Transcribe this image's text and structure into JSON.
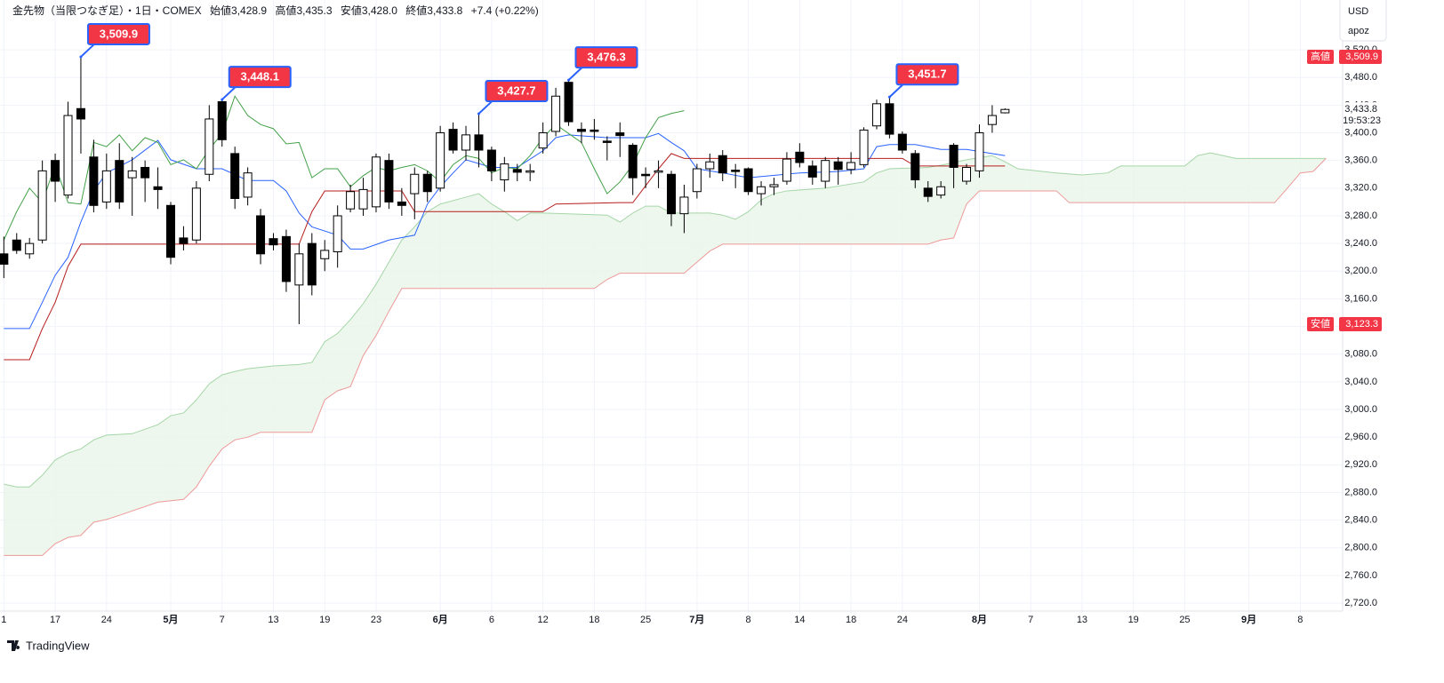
{
  "chart_data": {
    "type": "candlestick",
    "title": "金先物（当限つなぎ足）・1日・COMEX",
    "ohlc_header": [
      {
        "label": "始値",
        "value": "3,428.9"
      },
      {
        "label": "高値",
        "value": "3,435.3"
      },
      {
        "label": "安値",
        "value": "3,428.0"
      },
      {
        "label": "終値",
        "value": "3,433.8"
      }
    ],
    "change": "+7.4 (+0.22%)",
    "currency": "USD",
    "user": "apoz",
    "brand": "TradingView",
    "up_color": "#ffffff",
    "down_color": "#000000",
    "grid": true,
    "xlim": [
      -0.3,
      104.3
    ],
    "ylim": [
      2706,
      3592
    ],
    "xticks": [
      {
        "value": 0,
        "label": "1"
      },
      {
        "value": 4,
        "label": "17"
      },
      {
        "value": 8,
        "label": "24"
      },
      {
        "value": 13,
        "label": "5月"
      },
      {
        "value": 17,
        "label": "7"
      },
      {
        "value": 21,
        "label": "13"
      },
      {
        "value": 25,
        "label": "19"
      },
      {
        "value": 29,
        "label": "23"
      },
      {
        "value": 34,
        "label": "6月"
      },
      {
        "value": 38,
        "label": "6"
      },
      {
        "value": 42,
        "label": "12"
      },
      {
        "value": 46,
        "label": "18"
      },
      {
        "value": 50,
        "label": "25"
      },
      {
        "value": 54,
        "label": "7月"
      },
      {
        "value": 58,
        "label": "8"
      },
      {
        "value": 62,
        "label": "14"
      },
      {
        "value": 66,
        "label": "18"
      },
      {
        "value": 70,
        "label": "24"
      },
      {
        "value": 76,
        "label": "8月"
      },
      {
        "value": 80,
        "label": "7"
      },
      {
        "value": 84,
        "label": "13"
      },
      {
        "value": 88,
        "label": "19"
      },
      {
        "value": 92,
        "label": "25"
      },
      {
        "value": 97,
        "label": "9月"
      },
      {
        "value": 101,
        "label": "8"
      }
    ],
    "yticks": [
      {
        "value": 2720,
        "label": "2,720.0"
      },
      {
        "value": 2760,
        "label": "2,760.0"
      },
      {
        "value": 2800,
        "label": "2,800.0"
      },
      {
        "value": 2840,
        "label": "2,840.0"
      },
      {
        "value": 2880,
        "label": "2,880.0"
      },
      {
        "value": 2920,
        "label": "2,920.0"
      },
      {
        "value": 2960,
        "label": "2,960.0"
      },
      {
        "value": 3000,
        "label": "3,000.0"
      },
      {
        "value": 3040,
        "label": "3,040.0"
      },
      {
        "value": 3080,
        "label": "3,080.0"
      },
      {
        "value": 3120,
        "label": "3,120.0"
      },
      {
        "value": 3160,
        "label": "3,160.0"
      },
      {
        "value": 3200,
        "label": "3,200.0"
      },
      {
        "value": 3240,
        "label": "3,240.0"
      },
      {
        "value": 3280,
        "label": "3,280.0"
      },
      {
        "value": 3320,
        "label": "3,320.0"
      },
      {
        "value": 3360,
        "label": "3,360.0"
      },
      {
        "value": 3400,
        "label": "3,400.0"
      },
      {
        "value": 3440,
        "label": "3,440.0"
      },
      {
        "value": 3480,
        "label": "3,480.0"
      },
      {
        "value": 3520,
        "label": "3,520.0"
      }
    ],
    "x": [
      0,
      1,
      2,
      3,
      4,
      5,
      6,
      7,
      8,
      9,
      10,
      11,
      12,
      13,
      14,
      15,
      16,
      17,
      18,
      19,
      20,
      21,
      22,
      23,
      24,
      25,
      26,
      27,
      28,
      29,
      30,
      31,
      32,
      33,
      34,
      35,
      36,
      37,
      38,
      39,
      40,
      41,
      42,
      43,
      44,
      45,
      46,
      47,
      48,
      49,
      50,
      51,
      52,
      53,
      54,
      55,
      56,
      57,
      58,
      59,
      60,
      61,
      62,
      63,
      64,
      65,
      66,
      67,
      68,
      69,
      70,
      71,
      72,
      73,
      74,
      75,
      76,
      77,
      78
    ],
    "open": [
      3225,
      3245,
      3225,
      3245,
      3360,
      3310,
      3435,
      3365,
      3300,
      3360,
      3335,
      3350,
      3322,
      3295,
      3248,
      3245,
      3340,
      3445,
      3370,
      3307,
      3280,
      3247,
      3250,
      3180,
      3240,
      3218,
      3228,
      3290,
      3290,
      3293,
      3360,
      3300,
      3312,
      3340,
      3320,
      3405,
      3375,
      3397,
      3375,
      3332,
      3347,
      3343,
      3378,
      3402,
      3473,
      3405,
      3404,
      3388,
      3400,
      3382,
      3340,
      3343,
      3340,
      3283,
      3315,
      3348,
      3367,
      3346,
      3348,
      3312,
      3322,
      3330,
      3372,
      3352,
      3330,
      3358,
      3347,
      3354,
      3410,
      3442,
      3398,
      3370,
      3320,
      3310,
      3382,
      3330,
      3345,
      3412,
      3428.9
    ],
    "high": [
      3250,
      3255,
      3248,
      3360,
      3370,
      3445,
      3509.9,
      3390,
      3370,
      3385,
      3365,
      3360,
      3350,
      3300,
      3265,
      3330,
      3440,
      3448.1,
      3380,
      3350,
      3290,
      3255,
      3260,
      3240,
      3255,
      3245,
      3295,
      3325,
      3335,
      3370,
      3370,
      3320,
      3350,
      3345,
      3410,
      3415,
      3410,
      3427.7,
      3380,
      3365,
      3355,
      3355,
      3415,
      3465,
      3476.3,
      3415,
      3420,
      3395,
      3415,
      3385,
      3350,
      3360,
      3345,
      3325,
      3355,
      3370,
      3375,
      3355,
      3350,
      3330,
      3335,
      3372,
      3385,
      3360,
      3365,
      3365,
      3372,
      3408,
      3448,
      3451.7,
      3402,
      3375,
      3330,
      3330,
      3385,
      3355,
      3412,
      3440,
      3435.3
    ],
    "low": [
      3190,
      3225,
      3218,
      3240,
      3300,
      3305,
      3370,
      3285,
      3290,
      3290,
      3280,
      3300,
      3290,
      3210,
      3230,
      3240,
      3330,
      3380,
      3290,
      3295,
      3210,
      3230,
      3170,
      3123.3,
      3165,
      3200,
      3205,
      3285,
      3280,
      3285,
      3290,
      3280,
      3275,
      3300,
      3315,
      3370,
      3360,
      3350,
      3330,
      3315,
      3330,
      3330,
      3370,
      3395,
      3410,
      3385,
      3390,
      3360,
      3365,
      3310,
      3320,
      3320,
      3265,
      3255,
      3305,
      3335,
      3330,
      3320,
      3310,
      3295,
      3310,
      3325,
      3350,
      3325,
      3320,
      3325,
      3340,
      3350,
      3405,
      3392,
      3370,
      3320,
      3300,
      3305,
      3320,
      3325,
      3335,
      3400,
      3428.0
    ],
    "close": [
      3210,
      3230,
      3240,
      3345,
      3330,
      3425,
      3420,
      3295,
      3345,
      3300,
      3345,
      3335,
      3318,
      3220,
      3240,
      3320,
      3420,
      3390,
      3305,
      3342,
      3225,
      3238,
      3185,
      3225,
      3180,
      3230,
      3280,
      3315,
      3318,
      3365,
      3300,
      3295,
      3340,
      3315,
      3400,
      3375,
      3397,
      3375,
      3345,
      3355,
      3343,
      3345,
      3400,
      3453,
      3416,
      3402,
      3402,
      3386,
      3396,
      3335,
      3338,
      3345,
      3283,
      3307,
      3348,
      3358,
      3342,
      3344,
      3315,
      3322,
      3325,
      3362,
      3357,
      3336,
      3360,
      3347,
      3357,
      3404,
      3442,
      3398,
      3375,
      3332,
      3308,
      3322,
      3350,
      3350,
      3400,
      3425,
      3433.8
    ],
    "lines": [
      {
        "color": "#2962ff",
        "x": [
          0,
          2,
          3,
          4,
          5,
          6,
          7,
          8,
          10,
          12,
          13,
          15,
          17,
          19,
          21,
          22,
          23,
          24,
          26,
          27,
          28,
          30,
          32,
          33,
          34,
          35,
          36,
          38,
          40,
          42,
          43,
          44,
          47,
          50,
          51,
          52,
          53,
          54,
          56,
          58,
          62,
          65,
          67,
          68,
          69,
          71,
          73,
          75,
          78
        ],
        "values": [
          3117,
          3117,
          3155,
          3194,
          3220,
          3271,
          3316,
          3342,
          3361,
          3389,
          3361,
          3348,
          3348,
          3331,
          3331,
          3316,
          3284,
          3264,
          3252,
          3232,
          3232,
          3245,
          3252,
          3297,
          3322,
          3342,
          3361,
          3350,
          3350,
          3374,
          3393,
          3397,
          3393,
          3393,
          3399,
          3386,
          3374,
          3348,
          3342,
          3335,
          3342,
          3344,
          3348,
          3380,
          3383,
          3383,
          3376,
          3376,
          3367
        ]
      },
      {
        "color": "#b71c1c",
        "x": [
          0,
          2,
          3,
          4,
          5,
          6,
          17,
          23,
          24,
          25,
          31,
          32,
          42,
          43,
          48,
          49,
          51,
          52,
          53,
          70,
          71,
          78
        ],
        "values": [
          3072,
          3072,
          3117,
          3155,
          3207,
          3239,
          3239,
          3239,
          3286,
          3316,
          3316,
          3286,
          3286,
          3297,
          3299,
          3299,
          3348,
          3370,
          3363,
          3363,
          3352,
          3352
        ]
      },
      {
        "color": "#43a047",
        "x": [
          0,
          1,
          2,
          3,
          4,
          5,
          6,
          7,
          8,
          9,
          10,
          11,
          12,
          13,
          14,
          15,
          16,
          17,
          18,
          19,
          20,
          21,
          22,
          23,
          24,
          25,
          26,
          27,
          28,
          29,
          30,
          31,
          32,
          33,
          34,
          35,
          36,
          37,
          38,
          39,
          40,
          41,
          42,
          43,
          44,
          45,
          46,
          47,
          48,
          49,
          50,
          51,
          52,
          53
        ],
        "values": [
          3245,
          3286,
          3320,
          3299,
          3354,
          3299,
          3297,
          3386,
          3380,
          3397,
          3374,
          3393,
          3386,
          3354,
          3361,
          3348,
          3376,
          3399,
          3453,
          3425,
          3412,
          3406,
          3384,
          3386,
          3335,
          3348,
          3348,
          3322,
          3338,
          3350,
          3345,
          3350,
          3354,
          3345,
          3329,
          3354,
          3367,
          3363,
          3342,
          3350,
          3348,
          3367,
          3393,
          3412,
          3399,
          3386,
          3348,
          3312,
          3329,
          3354,
          3393,
          3422,
          3428,
          3432
        ]
      }
    ],
    "cloud": {
      "fill": "#e8f5e9",
      "upper": {
        "color": "#a5d6a7",
        "x": [
          0,
          1,
          2,
          3,
          4,
          5,
          6,
          7,
          8,
          10,
          12,
          13,
          14,
          15,
          16,
          17,
          18,
          19,
          21,
          23,
          24,
          25,
          26,
          27,
          28,
          29,
          30,
          31,
          32,
          33,
          34,
          36,
          37,
          38,
          39,
          40,
          41,
          42,
          47,
          48,
          49,
          50,
          51,
          52,
          53,
          54,
          55,
          56,
          57,
          58,
          59,
          60,
          61,
          64,
          67,
          68,
          69,
          72,
          73,
          75,
          77,
          78,
          79,
          82,
          84,
          86,
          87,
          92,
          93,
          94,
          96,
          102,
          103
        ],
        "values": [
          2892,
          2888,
          2888,
          2905,
          2927,
          2937,
          2943,
          2956,
          2963,
          2965,
          2978,
          2991,
          2995,
          3014,
          3037,
          3050,
          3055,
          3059,
          3063,
          3065,
          3068,
          3098,
          3110,
          3130,
          3153,
          3181,
          3213,
          3245,
          3264,
          3286,
          3297,
          3307,
          3312,
          3297,
          3286,
          3273,
          3284,
          3284,
          3281,
          3271,
          3284,
          3294,
          3294,
          3284,
          3284,
          3284,
          3284,
          3281,
          3275,
          3286,
          3303,
          3312,
          3316,
          3320,
          3329,
          3342,
          3348,
          3350,
          3353,
          3361,
          3367,
          3358,
          3348,
          3342,
          3339,
          3342,
          3352,
          3352,
          3367,
          3371,
          3363,
          3363,
          3363
        ]
      },
      "lower": {
        "color": "#ef9a9a",
        "x": [
          0,
          3,
          4,
          5,
          6,
          7,
          8,
          9,
          12,
          14,
          15,
          16,
          17,
          18,
          19,
          20,
          24,
          25,
          26,
          27,
          28,
          29,
          30,
          31,
          46,
          47,
          48,
          53,
          54,
          55,
          56,
          72,
          73,
          74,
          75,
          76,
          82,
          83,
          99,
          100,
          101,
          102,
          103
        ],
        "values": [
          2789,
          2789,
          2806,
          2815,
          2818,
          2837,
          2841,
          2847,
          2866,
          2870,
          2888,
          2918,
          2943,
          2956,
          2960,
          2967,
          2967,
          3014,
          3027,
          3033,
          3078,
          3107,
          3142,
          3175,
          3175,
          3188,
          3197,
          3197,
          3213,
          3229,
          3239,
          3239,
          3245,
          3248,
          3297,
          3316,
          3316,
          3299,
          3299,
          3320,
          3342,
          3344,
          3363
        ]
      }
    },
    "callouts": [
      {
        "x": 6,
        "value": 3509.9,
        "label": "3,509.9"
      },
      {
        "x": 17,
        "value": 3448.1,
        "label": "3,448.1"
      },
      {
        "x": 37,
        "value": 3427.7,
        "label": "3,427.7"
      },
      {
        "x": 44,
        "value": 3476.3,
        "label": "3,476.3"
      },
      {
        "x": 69,
        "value": 3451.7,
        "label": "3,451.7"
      }
    ],
    "price_tags": [
      {
        "name": "高値",
        "value": 3509.9,
        "label": "3,509.9",
        "color": "#f23645"
      },
      {
        "name": "安値",
        "value": 3123.3,
        "label": "3,123.3",
        "color": "#f23645"
      }
    ],
    "last_price": {
      "value": 3433.8,
      "label": "3,433.8",
      "time": "19:53:23"
    }
  }
}
